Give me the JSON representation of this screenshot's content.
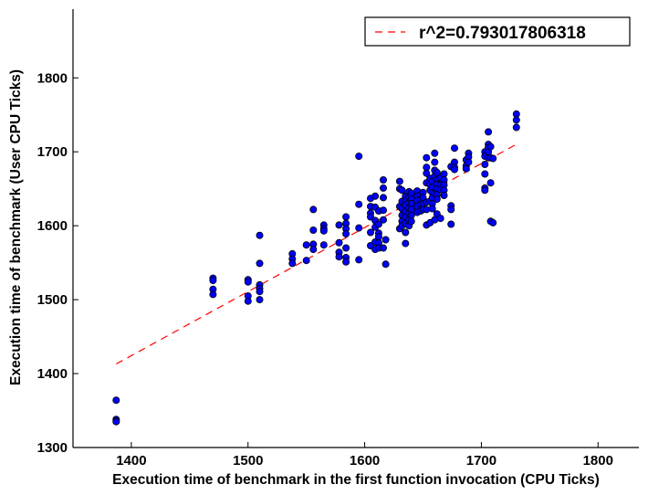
{
  "chart_data": {
    "type": "scatter",
    "xlabel": "Execution time of benchmark in the first function invocation (CPU Ticks)",
    "ylabel": "Execution time of benchmark (User CPU Ticks)",
    "xlim": [
      1350,
      1835
    ],
    "ylim": [
      1300,
      1893
    ],
    "x_ticks": [
      1400,
      1500,
      1600,
      1700,
      1800
    ],
    "y_ticks": [
      1300,
      1400,
      1500,
      1600,
      1700,
      1800
    ],
    "grid": false,
    "legend_position": "top-right",
    "colors": {
      "points": "#0000ff",
      "point_edge": "#000000",
      "fit_line": "#ff0000"
    },
    "fit_line": {
      "label": "r^2=0.793017806318",
      "style": "dashed",
      "x": [
        1387,
        1731
      ],
      "y": [
        1413,
        1711
      ]
    },
    "points": {
      "name": "",
      "x": [
        1387,
        1387,
        1387,
        1387,
        1470,
        1470,
        1470,
        1470,
        1500,
        1500,
        1500,
        1500,
        1510,
        1510,
        1510,
        1510,
        1510,
        1510,
        1538,
        1538,
        1538,
        1550,
        1550,
        1556,
        1556,
        1556,
        1556,
        1565,
        1565,
        1565,
        1565,
        1578,
        1578,
        1578,
        1578,
        1584,
        1584,
        1584,
        1584,
        1584,
        1584,
        1584,
        1595,
        1595,
        1595,
        1595,
        1605,
        1605,
        1605,
        1605,
        1605,
        1605,
        1609,
        1609,
        1609,
        1609,
        1609,
        1609,
        1612,
        1612,
        1612,
        1612,
        1612,
        1612,
        1616,
        1616,
        1616,
        1616,
        1616,
        1616,
        1618,
        1618,
        1630,
        1630,
        1630,
        1630,
        1632,
        1632,
        1632,
        1632,
        1632,
        1632,
        1635,
        1635,
        1635,
        1635,
        1635,
        1635,
        1635,
        1635,
        1638,
        1638,
        1638,
        1638,
        1638,
        1638,
        1638,
        1640,
        1640,
        1640,
        1640,
        1640,
        1640,
        1645,
        1645,
        1645,
        1645,
        1645,
        1648,
        1648,
        1648,
        1648,
        1650,
        1650,
        1650,
        1650,
        1653,
        1653,
        1653,
        1653,
        1653,
        1653,
        1653,
        1656,
        1656,
        1656,
        1656,
        1656,
        1658,
        1658,
        1658,
        1658,
        1658,
        1658,
        1660,
        1660,
        1660,
        1660,
        1660,
        1660,
        1662,
        1662,
        1662,
        1662,
        1662,
        1662,
        1662,
        1665,
        1665,
        1665,
        1665,
        1668,
        1668,
        1668,
        1668,
        1668,
        1674,
        1674,
        1674,
        1674,
        1677,
        1677,
        1677,
        1677,
        1687,
        1687,
        1687,
        1689,
        1689,
        1689,
        1703,
        1703,
        1703,
        1703,
        1703,
        1703,
        1706,
        1706,
        1706,
        1706,
        1706,
        1708,
        1708,
        1708,
        1708,
        1710,
        1710,
        1730,
        1730,
        1730
      ],
      "y": [
        1364,
        1338,
        1336,
        1335,
        1529,
        1526,
        1514,
        1507,
        1527,
        1524,
        1505,
        1498,
        1587,
        1549,
        1520,
        1515,
        1511,
        1500,
        1562,
        1555,
        1549,
        1574,
        1553,
        1622,
        1594,
        1575,
        1568,
        1601,
        1596,
        1593,
        1574,
        1601,
        1577,
        1564,
        1558,
        1612,
        1603,
        1596,
        1589,
        1570,
        1557,
        1551,
        1694,
        1629,
        1597,
        1554,
        1637,
        1626,
        1617,
        1612,
        1591,
        1573,
        1640,
        1625,
        1607,
        1598,
        1578,
        1568,
        1620,
        1602,
        1590,
        1585,
        1577,
        1570,
        1662,
        1651,
        1638,
        1621,
        1608,
        1570,
        1581,
        1548,
        1660,
        1650,
        1626,
        1596,
        1648,
        1633,
        1623,
        1614,
        1606,
        1600,
        1640,
        1634,
        1628,
        1619,
        1612,
        1603,
        1591,
        1576,
        1646,
        1638,
        1631,
        1624,
        1617,
        1608,
        1600,
        1644,
        1636,
        1630,
        1622,
        1614,
        1606,
        1647,
        1640,
        1634,
        1626,
        1618,
        1642,
        1635,
        1629,
        1620,
        1645,
        1638,
        1630,
        1622,
        1692,
        1679,
        1671,
        1658,
        1632,
        1622,
        1601,
        1664,
        1656,
        1648,
        1633,
        1604,
        1660,
        1652,
        1645,
        1638,
        1630,
        1623,
        1698,
        1686,
        1675,
        1667,
        1644,
        1608,
        1672,
        1662,
        1656,
        1650,
        1642,
        1636,
        1616,
        1665,
        1655,
        1649,
        1610,
        1670,
        1662,
        1655,
        1648,
        1641,
        1680,
        1627,
        1622,
        1602,
        1705,
        1686,
        1679,
        1676,
        1689,
        1681,
        1677,
        1698,
        1693,
        1686,
        1700,
        1694,
        1683,
        1670,
        1651,
        1648,
        1727,
        1710,
        1706,
        1700,
        1692,
        1707,
        1692,
        1658,
        1606,
        1691,
        1604,
        1751,
        1743,
        1733
      ]
    }
  }
}
